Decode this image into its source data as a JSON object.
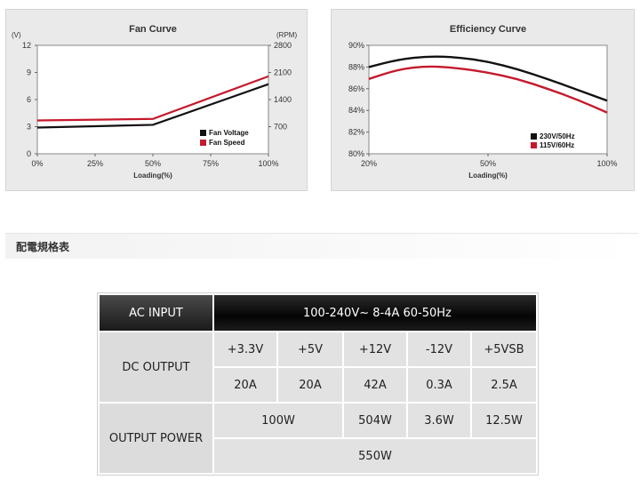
{
  "chart_data": [
    {
      "type": "line",
      "title": "Fan Curve",
      "xlabel": "Loading(%)",
      "ylabel_left": "(V)",
      "ylabel_right": "(RPM)",
      "x": [
        0,
        50,
        100
      ],
      "x_ticks": [
        "0%",
        "25%",
        "50%",
        "75%",
        "100%"
      ],
      "xlim": [
        0,
        100
      ],
      "ylim_left": [
        0,
        12
      ],
      "y_ticks_left": [
        "0",
        "3",
        "6",
        "9",
        "12"
      ],
      "ylim_right": [
        0,
        2800
      ],
      "y_ticks_right": [
        "700",
        "1400",
        "2100",
        "2800"
      ],
      "legend_position": "bottom-right",
      "grid": false,
      "series": [
        {
          "name": "Fan Voltage",
          "color": "#111111",
          "axis": "left",
          "values": [
            2.9,
            3.2,
            7.7
          ]
        },
        {
          "name": "Fan Speed",
          "color": "#c41a2c",
          "axis": "right",
          "values": [
            860,
            900,
            2000
          ]
        }
      ]
    },
    {
      "type": "line",
      "title": "Efficiency Curve",
      "xlabel": "Loading(%)",
      "xlim": [
        20,
        100
      ],
      "x_ticks": [
        "20%",
        "50%",
        "100%"
      ],
      "ylim": [
        80,
        90
      ],
      "y_ticks": [
        "80%",
        "82%",
        "84%",
        "86%",
        "88%",
        "90%"
      ],
      "legend_position": "bottom-right",
      "grid": false,
      "x": [
        20,
        30,
        40,
        50,
        60,
        70,
        80,
        90,
        100
      ],
      "series": [
        {
          "name": "230V/50Hz",
          "color": "#111111",
          "values": [
            88.0,
            88.7,
            89.0,
            88.9,
            88.5,
            87.8,
            86.9,
            85.9,
            84.9
          ]
        },
        {
          "name": "115V/60Hz",
          "color": "#c41a2c",
          "values": [
            86.9,
            87.8,
            88.1,
            87.9,
            87.5,
            86.9,
            86.0,
            85.0,
            83.8
          ]
        }
      ]
    }
  ],
  "section": {
    "title": "配電規格表"
  },
  "spec_table": {
    "ac_input": {
      "label": "AC INPUT",
      "value": "100-240V~ 8-4A 60-50Hz"
    },
    "dc_output": {
      "label": "DC OUTPUT",
      "rails": [
        "+3.3V",
        "+5V",
        "+12V",
        "-12V",
        "+5VSB"
      ],
      "currents": [
        "20A",
        "20A",
        "42A",
        "0.3A",
        "2.5A"
      ]
    },
    "output_power": {
      "label": "OUTPUT POWER",
      "combined": "100W",
      "values": [
        "504W",
        "3.6W",
        "12.5W"
      ],
      "total": "550W"
    }
  }
}
